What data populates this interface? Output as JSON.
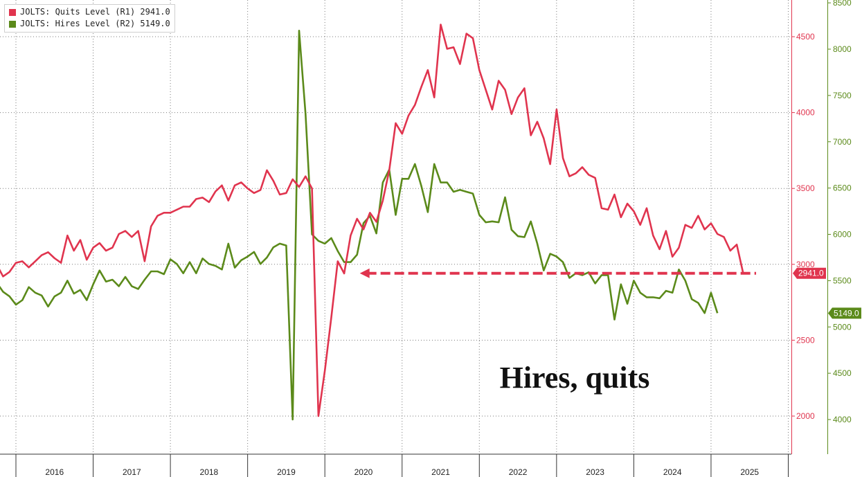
{
  "colors": {
    "quits": "#e0344e",
    "hires": "#5b8a1a"
  },
  "legend": {
    "items": [
      {
        "label": "JOLTS: Quits Level (R1) 2941.0",
        "color": "#e0344e"
      },
      {
        "label": "JOLTS: Hires Level (R2) 5149.0",
        "color": "#5b8a1a"
      }
    ]
  },
  "chart_data": {
    "type": "line",
    "title": "",
    "annotation": "Hires, quits",
    "x_labels": [
      "2016",
      "2017",
      "2018",
      "2019",
      "2020",
      "2021",
      "2022",
      "2023",
      "2024",
      "2025"
    ],
    "grid": true,
    "axes": {
      "r1": {
        "min": 1800,
        "max": 4700,
        "ticks": [
          2000,
          2500,
          3000,
          3500,
          4000,
          4500
        ],
        "color": "#e0344e"
      },
      "r2": {
        "min": 3800,
        "max": 8500,
        "ticks": [
          4000,
          4500,
          5000,
          5500,
          6000,
          6500,
          7000,
          7500,
          8000,
          8500
        ],
        "color": "#5b8a1a"
      }
    },
    "series": [
      {
        "name": "JOLTS: Quits Level (R1)",
        "axis": "r1",
        "last_value_label": "2941.0",
        "start": "2015-06",
        "values": [
          2800,
          2900,
          3060,
          2880,
          3000,
          2920,
          2950,
          3010,
          3020,
          2980,
          3020,
          3060,
          3080,
          3040,
          3010,
          3190,
          3090,
          3160,
          3030,
          3110,
          3140,
          3090,
          3110,
          3200,
          3220,
          3180,
          3220,
          3020,
          3250,
          3320,
          3340,
          3340,
          3360,
          3380,
          3380,
          3430,
          3440,
          3410,
          3480,
          3520,
          3420,
          3520,
          3540,
          3500,
          3470,
          3490,
          3620,
          3550,
          3460,
          3470,
          3560,
          3510,
          3580,
          3500,
          2000,
          2300,
          2650,
          3020,
          2940,
          3190,
          3300,
          3230,
          3340,
          3280,
          3420,
          3620,
          3930,
          3860,
          3980,
          4050,
          4170,
          4280,
          4100,
          4580,
          4420,
          4430,
          4320,
          4520,
          4490,
          4280,
          4150,
          4020,
          4210,
          4150,
          3990,
          4100,
          4160,
          3850,
          3940,
          3830,
          3660,
          4020,
          3700,
          3580,
          3600,
          3640,
          3590,
          3570,
          3370,
          3360,
          3460,
          3310,
          3400,
          3350,
          3260,
          3370,
          3190,
          3100,
          3220,
          3050,
          3110,
          3260,
          3240,
          3320,
          3230,
          3270,
          3200,
          3180,
          3090,
          3130,
          2941
        ]
      },
      {
        "name": "JOLTS: Hires Level (R2)",
        "axis": "r2",
        "last_value_label": "5149.0",
        "start": "2015-06",
        "values": [
          5350,
          5380,
          5550,
          5230,
          5480,
          5380,
          5330,
          5240,
          5290,
          5430,
          5370,
          5340,
          5220,
          5330,
          5370,
          5500,
          5360,
          5400,
          5290,
          5460,
          5610,
          5490,
          5510,
          5440,
          5540,
          5440,
          5410,
          5510,
          5600,
          5600,
          5570,
          5730,
          5680,
          5580,
          5700,
          5580,
          5740,
          5680,
          5660,
          5620,
          5900,
          5640,
          5720,
          5760,
          5810,
          5680,
          5750,
          5860,
          5900,
          5880,
          4000,
          8200,
          7300,
          6000,
          5930,
          5900,
          5960,
          5820,
          5700,
          5700,
          5780,
          6120,
          6200,
          6010,
          6560,
          6700,
          6210,
          6600,
          6600,
          6760,
          6520,
          6240,
          6760,
          6560,
          6560,
          6460,
          6480,
          6460,
          6440,
          6210,
          6130,
          6140,
          6130,
          6400,
          6050,
          5980,
          5970,
          6140,
          5900,
          5610,
          5790,
          5760,
          5700,
          5530,
          5580,
          5560,
          5590,
          5470,
          5560,
          5560,
          5080,
          5460,
          5250,
          5500,
          5370,
          5320,
          5320,
          5310,
          5390,
          5370,
          5620,
          5500,
          5300,
          5260,
          5150,
          5370,
          5149
        ]
      }
    ],
    "reference_line": {
      "axis": "r1",
      "value": 2941,
      "from": "2020-06",
      "to": "2025-08",
      "style": "dashed-arrow"
    }
  }
}
